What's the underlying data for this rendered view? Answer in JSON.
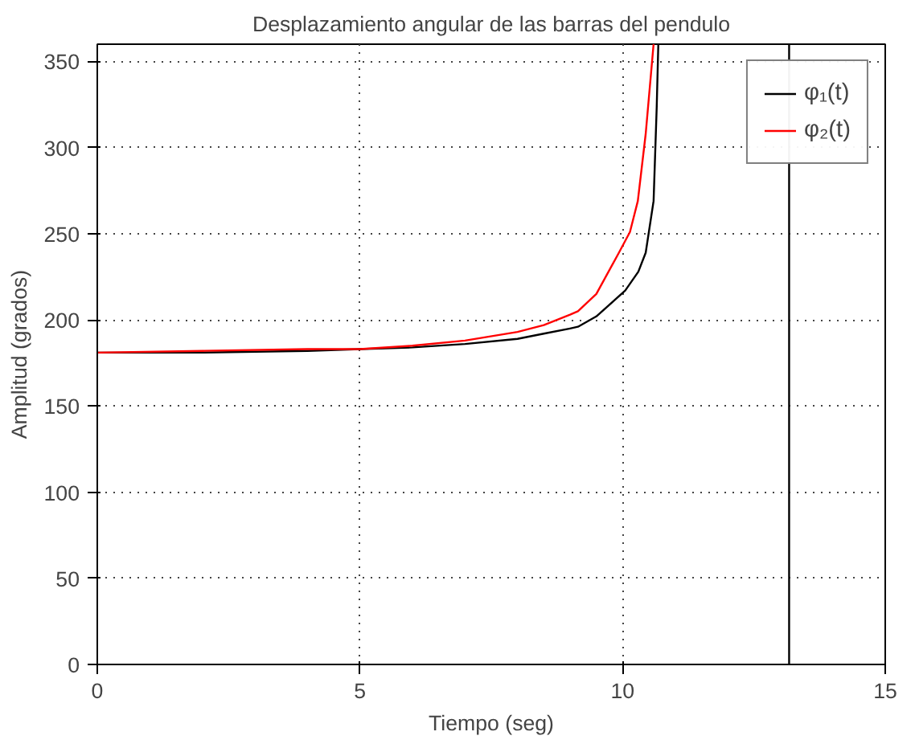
{
  "chart_data": {
    "type": "line",
    "title": "Desplazamiento angular de las barras del pendulo",
    "xlabel": "Tiempo (seg)",
    "ylabel": "Amplitud (grados)",
    "xlim": [
      0,
      15
    ],
    "ylim": [
      0,
      360
    ],
    "xticks": [
      0,
      5,
      10,
      15
    ],
    "yticks": [
      0,
      50,
      100,
      150,
      200,
      250,
      300,
      350
    ],
    "grid": true,
    "legend": "top right",
    "series": [
      {
        "name": "φ₁(t)",
        "color": "#000000",
        "x": [
          0,
          2,
          4,
          5,
          6,
          7,
          8,
          8.5,
          9,
          9.15,
          9.5,
          10.05,
          10.3,
          10.44,
          10.59,
          10.65,
          10.68
        ],
        "values": [
          181,
          181,
          182,
          183,
          184,
          186,
          189,
          192,
          195,
          196,
          202,
          217,
          228,
          239,
          269,
          324,
          360
        ]
      },
      {
        "name": "φ₂(t)",
        "color": "#ff0000",
        "x": [
          0,
          2,
          4,
          5,
          6,
          7,
          8,
          8.5,
          9,
          9.15,
          9.5,
          9.93,
          10.14,
          10.29,
          10.44,
          10.59
        ],
        "values": [
          181,
          182,
          183,
          183,
          185,
          188,
          193,
          197,
          203,
          205,
          215,
          239,
          251,
          269,
          308,
          360
        ]
      }
    ],
    "ref_lines": [
      {
        "axis": "x",
        "value": 13.17,
        "color": "#000000"
      }
    ]
  }
}
